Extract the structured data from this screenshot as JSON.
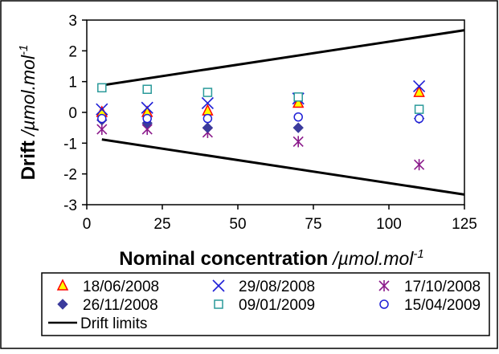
{
  "chart_data": {
    "type": "scatter",
    "xlabel": "Nominal concentration",
    "xlabel_unit": "/µmol.mol",
    "xlabel_unit_exp": "-1",
    "ylabel": "Drift",
    "ylabel_unit": "/µmol.mol",
    "ylabel_unit_exp": "-1",
    "xlim": [
      0,
      125
    ],
    "ylim": [
      -3,
      3
    ],
    "x_ticks": [
      "0",
      "25",
      "50",
      "75",
      "100",
      "125"
    ],
    "y_ticks": [
      "3",
      "2",
      "1",
      "0",
      "-1",
      "-2",
      "-3"
    ],
    "grid": false,
    "legend_position": "bottom",
    "series": [
      {
        "name": "18/06/2008",
        "marker": "triangle",
        "color": "#ffff00",
        "edge": "#ff0000",
        "points": [
          [
            5,
            0.0
          ],
          [
            20,
            0.0
          ],
          [
            40,
            0.05
          ],
          [
            70,
            0.3
          ],
          [
            110,
            0.65
          ]
        ]
      },
      {
        "name": "29/08/2008",
        "marker": "x",
        "color": "#1f1fd6",
        "points": [
          [
            5,
            0.1
          ],
          [
            20,
            0.15
          ],
          [
            40,
            0.3
          ],
          [
            70,
            0.45
          ],
          [
            110,
            0.85
          ]
        ]
      },
      {
        "name": "17/10/2008",
        "marker": "asterisk",
        "color": "#8b1a8b",
        "points": [
          [
            5,
            -0.55
          ],
          [
            20,
            -0.55
          ],
          [
            40,
            -0.65
          ],
          [
            70,
            -0.95
          ],
          [
            110,
            -1.7
          ]
        ]
      },
      {
        "name": "26/11/2008",
        "marker": "diamond",
        "color": "#3b3b9c",
        "points": [
          [
            5,
            -0.25
          ],
          [
            20,
            -0.35
          ],
          [
            40,
            -0.5
          ],
          [
            70,
            -0.5
          ],
          [
            110,
            -0.2
          ]
        ]
      },
      {
        "name": "09/01/2009",
        "marker": "square",
        "color": "#2a9a9a",
        "points": [
          [
            5,
            0.8
          ],
          [
            20,
            0.75
          ],
          [
            40,
            0.65
          ],
          [
            70,
            0.5
          ],
          [
            110,
            0.1
          ]
        ]
      },
      {
        "name": "15/04/2009",
        "marker": "circle",
        "color": "#1f1fd6",
        "points": [
          [
            5,
            -0.2
          ],
          [
            20,
            -0.2
          ],
          [
            40,
            -0.2
          ],
          [
            70,
            -0.15
          ],
          [
            110,
            -0.2
          ]
        ]
      },
      {
        "name": "Drift limits",
        "marker": "line",
        "color": "#000000",
        "lines": [
          [
            [
              5,
              0.88
            ],
            [
              125,
              2.67
            ]
          ],
          [
            [
              5,
              -0.88
            ],
            [
              125,
              -2.67
            ]
          ]
        ]
      }
    ]
  }
}
